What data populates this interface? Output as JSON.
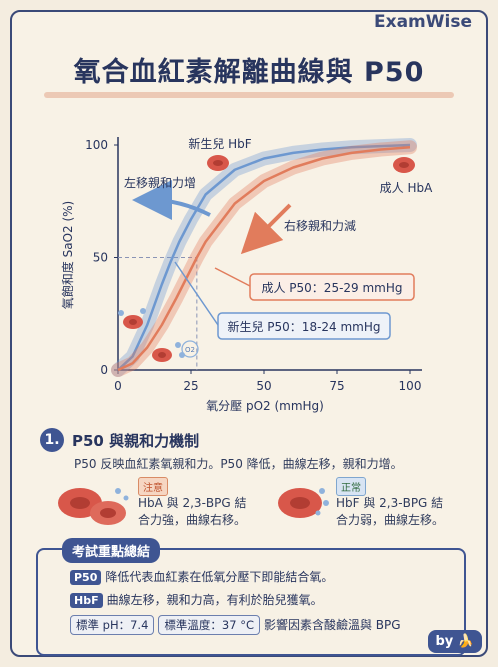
{
  "brand": "ExamWise",
  "title": "氧合血紅素解離曲線與 P50",
  "chart_data": {
    "type": "line",
    "xlabel": "氧分壓 pO2 (mmHg)",
    "ylabel": "氧飽和度 SaO2 (%)",
    "xlim": [
      0,
      100
    ],
    "ylim": [
      0,
      100
    ],
    "xticks": [
      0,
      25,
      50,
      75,
      100
    ],
    "yticks": [
      0,
      50,
      100
    ],
    "series": [
      {
        "name": "新生兒 HbF",
        "color": "#6d98d0",
        "x": [
          0,
          5,
          10,
          15,
          18,
          21,
          25,
          30,
          40,
          50,
          60,
          70,
          80,
          90,
          100
        ],
        "y": [
          0,
          6,
          20,
          38,
          48,
          57,
          67,
          78,
          89,
          94,
          96.5,
          98,
          99,
          99.5,
          100
        ]
      },
      {
        "name": "成人 HbA",
        "color": "#e17c5c",
        "x": [
          0,
          5,
          10,
          15,
          20,
          27,
          30,
          40,
          50,
          60,
          70,
          80,
          90,
          100
        ],
        "y": [
          0,
          3,
          10,
          20,
          32,
          50,
          57,
          74,
          84,
          90,
          94,
          96.5,
          98,
          99
        ]
      }
    ],
    "annotations": {
      "left_shift": "左移親和力增",
      "right_shift": "右移親和力減",
      "adult_p50": "成人 P50：25-29 mmHg",
      "fetal_p50": "新生兒 P50：18-24 mmHg",
      "o2": "O2"
    }
  },
  "section": {
    "num": "1.",
    "title": "P50 與親和力機制",
    "text": "P50 反映血紅素氧親和力。P50 降低，曲線左移，親和力增。",
    "left_tag": "注意",
    "left_line1": "HbA 與 2,3-BPG 結",
    "left_line2": "合力強，曲線右移。",
    "right_tag": "正常",
    "right_line1": "HbF 與 2,3-BPG 結",
    "right_line2": "合力弱，曲線左移。"
  },
  "summary": {
    "head": "考試重點總結",
    "row1_badge": "P50",
    "row1_text": "降低代表血紅素在低氧分壓下即能結合氧。",
    "row2_badge": "HbF",
    "row2_text": "曲線左移，親和力高，有利於胎兒獲氧。",
    "pill1": "標準 pH：7.4",
    "pill2": "標準溫度：37 °C",
    "row3_text": "影響因素含酸鹼溫與 BPG"
  },
  "footer": "by 🍌"
}
